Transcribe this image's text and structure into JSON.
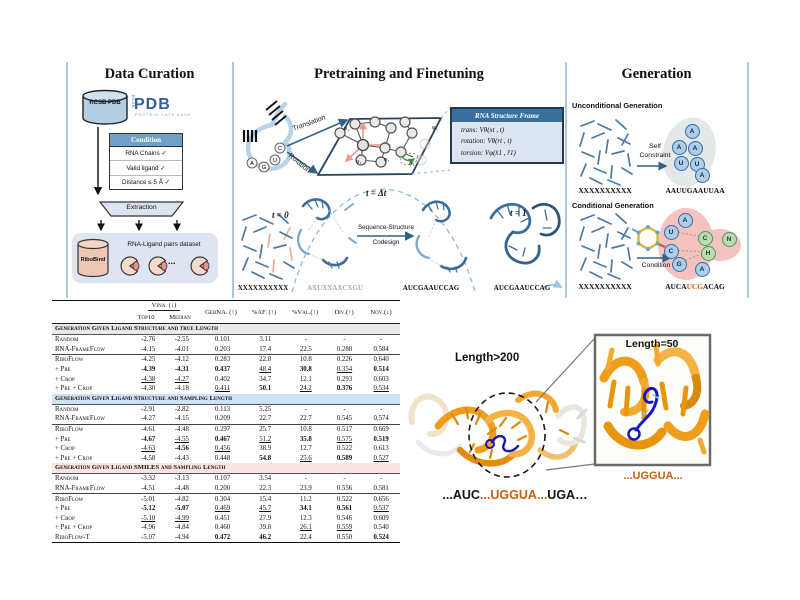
{
  "panel_titles": {
    "curation": "Data Curation",
    "pretrain": "Pretraining and Finetuning",
    "generation": "Generation"
  },
  "curation": {
    "db_cylinder": "RCSB PDB",
    "pdb_logo": {
      "vertical": "RCSB",
      "main": "PDB",
      "sub": "PROTEIN DATA BANK"
    },
    "condition": {
      "header": "Condition",
      "items": [
        "RNA Chains ✓",
        "Valid ligand ✓",
        "Distance ≤ 5 Å ✓"
      ]
    },
    "extraction": "Extraction",
    "dataset": {
      "cylinder": "RiboBind",
      "label": "RNA-Ligand pairs dataset",
      "ellipsis": "..."
    }
  },
  "pretrain": {
    "translation": "Translation",
    "rotation": "Rotation",
    "rna_letters": [
      "A",
      "G",
      "U",
      "C"
    ],
    "phi": [
      "φ₂",
      "φ₃",
      "φ₅",
      "φ₁",
      "φ₄"
    ],
    "frame": {
      "header": "RNA Structure Frame",
      "rows": [
        "trans: Vθ(xt , t)",
        "rotation: Vθ(rt , t)",
        "torsion: Vφ(x̂1 , r̂1)"
      ]
    },
    "t0": "t = 0",
    "tdt": "t = Δt",
    "t1": "t = 1",
    "codesign1": "Sequence-Structure",
    "codesign2": "Codesign",
    "seq_t0": "XXXXXXXXXX",
    "seq_noisy": "AXUXXAXCXGU",
    "seq_mid": "AUCGAAUCCAG",
    "seq_t1": "AUCGAAUCCAG"
  },
  "generation": {
    "uncond": {
      "heading": "Unconditional Generation",
      "arrow1": "Self",
      "arrow2": "Constraint",
      "seq_in": "XXXXXXXXXX",
      "seq_out": "AAUUGAAUUAA",
      "letters": [
        "A",
        "A",
        "A",
        "U",
        "U",
        "A"
      ]
    },
    "cond": {
      "heading": "Conditional Generation",
      "arrow": "Condition",
      "seq_in": "XXXXXXXXXX",
      "seq_out": [
        "AUCA",
        "UCG",
        "ACAG"
      ],
      "letters_rna": [
        "A",
        "U",
        "C",
        "G",
        "A"
      ],
      "letters_ligand": [
        "C",
        "N",
        "H"
      ]
    }
  },
  "table": {
    "group_header": "Vina. (↓)",
    "columns": [
      "Top10",
      "Median",
      "GerNA. (↑)",
      "%AF. (↑)",
      "%Val.(↑)",
      "Div.(↑)",
      "Nov.(↓)"
    ],
    "sections": [
      {
        "title": "Generation Given Ligand Structure and true Length",
        "color": "#e9e9e9",
        "groups": [
          [
            {
              "label": "Random",
              "cells": [
                "-2.76",
                "-2.55",
                "0.101",
                "3.11",
                "-",
                "-",
                "-"
              ]
            },
            {
              "label": "RNA-FrameFlow",
              "cells": [
                "-4.15",
                "-4.01",
                "0.203",
                "17.4",
                "22.5",
                "0.288",
                "0.584"
              ]
            }
          ],
          [
            {
              "label": "RiboFlow",
              "cells": [
                "-4.25",
                "-4.12",
                "0.283",
                "22.8",
                "10.8",
                "0.226",
                "0.640"
              ]
            },
            {
              "label": "+ Pre",
              "cells": [
                "*-4.39",
                "*-4.31",
                "*0.437",
                "_48.4",
                "*30.8",
                "_0.354",
                "*0.514"
              ]
            },
            {
              "label": "+ Crop",
              "cells": [
                "_-4.38",
                "_-4.27",
                "0.402",
                "34.7",
                "12.1",
                "0.293",
                "0.603"
              ]
            },
            {
              "label": "+ Pre + Crop",
              "cells": [
                "-4.30",
                "-4.18",
                "_0.411",
                "*50.1",
                "_24.2",
                "*0.376",
                "_0.534"
              ]
            }
          ]
        ]
      },
      {
        "title": "Generation Given Ligand Structure and Sampling Length",
        "color": "#cfe2f3",
        "groups": [
          [
            {
              "label": "Random",
              "cells": [
                "-2.91",
                "-2.82",
                "0.113",
                "5.25",
                "-",
                "-",
                "-"
              ]
            },
            {
              "label": "RNA-FrameFlow",
              "cells": [
                "-4.27",
                "-4.15",
                "0.209",
                "22.7",
                "22.7",
                "0.545",
                "0.574"
              ]
            }
          ],
          [
            {
              "label": "RiboFlow",
              "cells": [
                "-4.61",
                "-4.48",
                "0.297",
                "25.7",
                "10.8",
                "0.517",
                "0.669"
              ]
            },
            {
              "label": "+ Pre",
              "cells": [
                "*-4.67",
                "_-4.55",
                "*0.467",
                "_51.2",
                "*35.8",
                "_0.575",
                "*0.519"
              ]
            },
            {
              "label": "+ Crop",
              "cells": [
                "_-4.63",
                "*-4.56",
                "_0.456",
                "38.9",
                "12.7",
                "0.522",
                "0.613"
              ]
            },
            {
              "label": "+ Pre + Crop",
              "cells": [
                "-4.58",
                "-4.43",
                "0.448",
                "*54.8",
                "_25.6",
                "*0.589",
                "_0.527"
              ]
            }
          ]
        ]
      },
      {
        "title": "Generation Given Ligand SMILES and Sampling Length",
        "color": "#fbe5e4",
        "groups": [
          [
            {
              "label": "Random",
              "cells": [
                "-3.32",
                "-3.13",
                "0.107",
                "3.54",
                "-",
                "-",
                "-"
              ]
            },
            {
              "label": "RNA-FrameFlow",
              "cells": [
                "-4.51",
                "-4.48",
                "0.200",
                "22.3",
                "23.9",
                "0.556",
                "0.581"
              ]
            }
          ],
          [
            {
              "label": "RiboFlow",
              "cells": [
                "-5.01",
                "-4.82",
                "0.304",
                "15.4",
                "11.2",
                "0.522",
                "0.656"
              ]
            },
            {
              "label": "+ Pre",
              "cells": [
                "*-5.12",
                "*-5.07",
                "_0.469",
                "_45.7",
                "*34.1",
                "*0.561",
                "_0.537"
              ]
            },
            {
              "label": "+ Crop",
              "cells": [
                "_-5.10",
                "_-4.99",
                "0.451",
                "27.9",
                "12.3",
                "0.546",
                "0.609"
              ]
            },
            {
              "label": "+ Pre + Crop",
              "cells": [
                "-4.96",
                "-4.84",
                "0.460",
                "39.8",
                "_26.1",
                "_0.559",
                "0.540"
              ]
            },
            {
              "label": "RiboFlow-T",
              "cells": [
                "-5.07",
                "-4.94",
                "*0.472",
                "*46.2",
                "22.4",
                "0.550",
                "*0.524"
              ]
            }
          ]
        ]
      }
    ]
  },
  "figure": {
    "len_main": "Length>200",
    "len_inset": "Length=50",
    "seq_inset": "...UGGUA...",
    "seq_main": [
      "...AUC",
      "...UGGUA...",
      "UGA…"
    ]
  }
}
